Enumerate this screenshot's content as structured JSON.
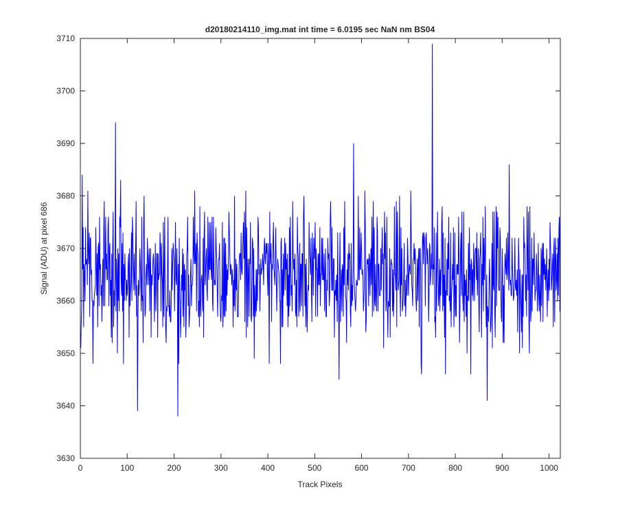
{
  "chart_data": {
    "type": "line",
    "title": "d20180214110_img.mat int time = 6.0195 sec  NaN nm BS04",
    "xlabel": "Track Pixels",
    "ylabel": "Signal (ADU) at pixel 686",
    "xlim": [
      0,
      1024
    ],
    "ylim": [
      3630,
      3710
    ],
    "xticks": [
      0,
      100,
      200,
      300,
      400,
      500,
      600,
      700,
      800,
      900,
      1000
    ],
    "yticks": [
      3630,
      3640,
      3650,
      3660,
      3670,
      3680,
      3690,
      3700,
      3710
    ],
    "grid": false,
    "series": [
      {
        "color": "#0000ff",
        "x_start": 1,
        "x_step": 1,
        "notable_points": [
          {
            "x": 1,
            "y": 3651
          },
          {
            "x": 4,
            "y": 3684
          },
          {
            "x": 75,
            "y": 3694
          },
          {
            "x": 122,
            "y": 3639
          },
          {
            "x": 208,
            "y": 3638
          },
          {
            "x": 751,
            "y": 3709
          },
          {
            "x": 583,
            "y": 3690
          },
          {
            "x": 868,
            "y": 3641
          }
        ],
        "baseline_mean": 3665,
        "typical_range": [
          3648,
          3682
        ]
      }
    ]
  }
}
